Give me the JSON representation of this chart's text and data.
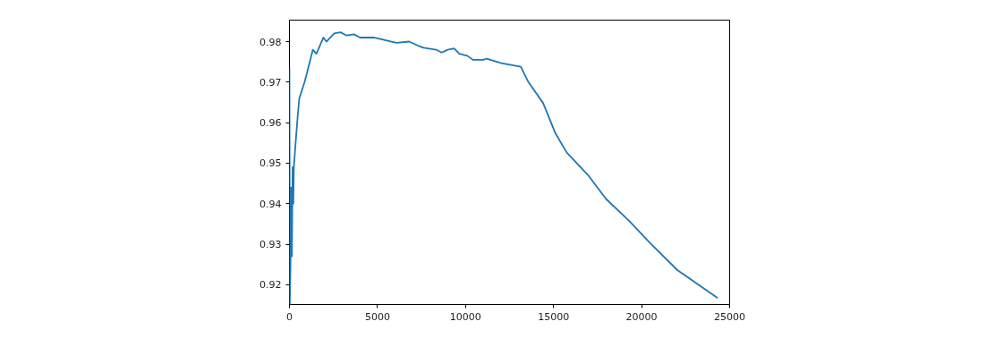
{
  "chart_data": {
    "type": "line",
    "xlim": [
      0,
      25000
    ],
    "ylim": [
      0.9151,
      0.9853
    ],
    "xticks": [
      0,
      5000,
      10000,
      15000,
      20000,
      25000
    ],
    "yticks": [
      0.92,
      0.93,
      0.94,
      0.95,
      0.96,
      0.97,
      0.98
    ],
    "grid": false,
    "series": [
      {
        "color": "#1f77b4",
        "x": [
          0,
          20,
          60,
          100,
          140,
          180,
          220,
          250,
          350,
          475,
          560,
          860,
          980,
          1330,
          1530,
          1930,
          2100,
          2540,
          2900,
          3250,
          3660,
          4010,
          4770,
          5280,
          5790,
          6100,
          6800,
          7300,
          7620,
          8330,
          8640,
          8990,
          9350,
          9650,
          10100,
          10420,
          11020,
          11200,
          12040,
          13140,
          13570,
          14410,
          15090,
          15750,
          16950,
          17970,
          19300,
          20500,
          22030,
          23220,
          24320
        ],
        "values": [
          0.9734,
          0.9151,
          0.925,
          0.944,
          0.927,
          0.949,
          0.94,
          0.949,
          0.955,
          0.962,
          0.966,
          0.97,
          0.972,
          0.978,
          0.977,
          0.981,
          0.98,
          0.982,
          0.9823,
          0.9815,
          0.9818,
          0.981,
          0.981,
          0.9805,
          0.98,
          0.9797,
          0.98,
          0.979,
          0.9785,
          0.978,
          0.9773,
          0.978,
          0.9783,
          0.977,
          0.9765,
          0.9755,
          0.9755,
          0.9758,
          0.9747,
          0.9738,
          0.97,
          0.9648,
          0.9575,
          0.9526,
          0.9471,
          0.9412,
          0.9357,
          0.9302,
          0.9236,
          0.92,
          0.9167
        ]
      }
    ]
  }
}
